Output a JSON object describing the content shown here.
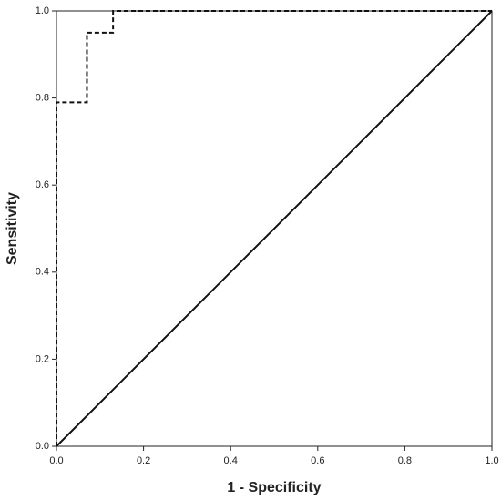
{
  "chart_data": {
    "type": "line",
    "xlabel": "1 - Specificity",
    "ylabel": "Sensitivity",
    "xlim": [
      0,
      1
    ],
    "ylim": [
      0,
      1
    ],
    "xticks": [
      {
        "value": 0,
        "label": "0.0"
      },
      0.2,
      0.4,
      0.6,
      0.8,
      {
        "value": 1,
        "label": "1.0"
      }
    ],
    "yticks": [
      {
        "value": 0,
        "label": "0.0"
      },
      0.2,
      0.4,
      0.6,
      0.8,
      {
        "value": 1,
        "label": "1.0"
      }
    ],
    "grid": false,
    "series": [
      {
        "color": "#111111",
        "dashed": true,
        "x": [
          0,
          0,
          0.07,
          0.07,
          0.13,
          0.13,
          1
        ],
        "values": [
          0,
          0.79,
          0.79,
          0.95,
          0.95,
          1,
          1
        ]
      },
      {
        "color": "#111111",
        "dashed": false,
        "x": [
          0,
          1
        ],
        "values": [
          0,
          1
        ]
      }
    ]
  }
}
